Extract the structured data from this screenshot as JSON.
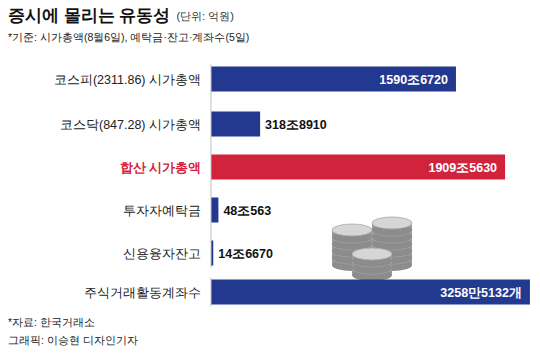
{
  "chart_data": [
    {
      "type": "bar",
      "orientation": "horizontal",
      "title": "증시에 몰리는 유동성",
      "subtitle": "(단위: 억원)",
      "annotations": [
        "*기준: 시가총액(8월6일), 예탁금·잔고·계좌수(5일)",
        "*자료: 한국거래소",
        "그래픽: 이승현 디자인기자"
      ],
      "categories": [
        "코스피(2311.86) 시가총액",
        "코스닥(847.28) 시가총액",
        "합산 시가총액",
        "투자자예탁금",
        "신용융자잔고"
      ],
      "values": [
        15906720,
        3188910,
        19095630,
        480563,
        146670
      ],
      "value_labels": [
        "1590조6720",
        "318조8910",
        "1909조5630",
        "48조563",
        "14조6670"
      ],
      "color": "#23398f",
      "colors": [
        "#23398f",
        "#23398f",
        "#d2233c",
        "#23398f",
        "#23398f"
      ],
      "xlim": [
        0,
        20000000
      ],
      "data_labels": true,
      "tick_labels": false
    },
    {
      "type": "bar",
      "orientation": "horizontal",
      "categories": [
        "주식거래활동계좌수"
      ],
      "values": [
        32585132
      ],
      "value_labels": [
        "3258만5132개"
      ],
      "color": "#23398f",
      "xlim": [
        0,
        33000000
      ],
      "data_labels": true,
      "tick_labels": false
    }
  ]
}
